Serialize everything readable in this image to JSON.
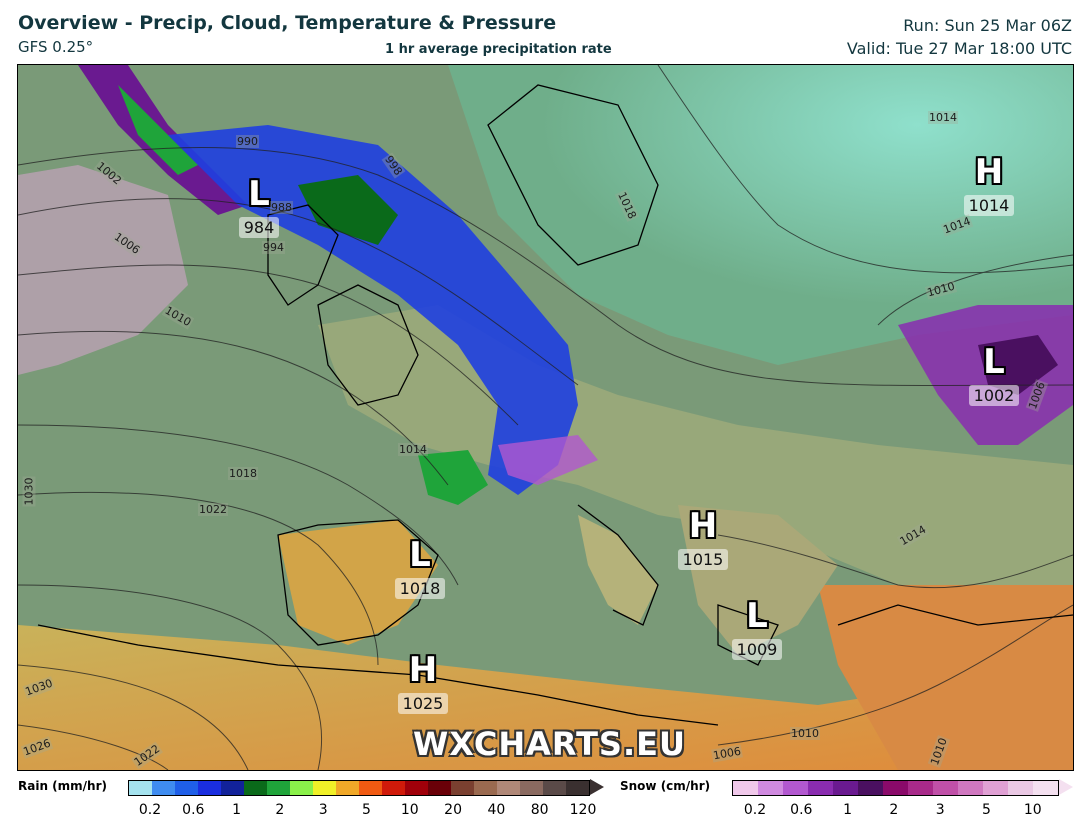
{
  "header": {
    "title": "Overview - Precip, Cloud, Temperature & Pressure",
    "model": "GFS 0.25°",
    "subtitle": "1 hr average precipitation rate",
    "run": "Run: Sun 25 Mar 06Z",
    "valid": "Valid: Tue 27 Mar 18:00 UTC"
  },
  "map": {
    "pressure_centers": [
      {
        "type": "L",
        "value": "984"
      },
      {
        "type": "H",
        "value": "1014"
      },
      {
        "type": "L",
        "value": "1002"
      },
      {
        "type": "H",
        "value": "1015"
      },
      {
        "type": "L",
        "value": "1018"
      },
      {
        "type": "L",
        "value": "1009"
      },
      {
        "type": "H",
        "value": "1025"
      }
    ],
    "isobar_labels": [
      "990",
      "1002",
      "1006",
      "1010",
      "988",
      "994",
      "998",
      "1018",
      "1014",
      "1014",
      "1014",
      "1010",
      "1006",
      "1018",
      "1022",
      "1030",
      "1030",
      "1026",
      "1022",
      "1010",
      "1006",
      "1014",
      "1010"
    ],
    "watermark": "WXCHARTS.EU",
    "colors": {
      "ocean": "#7d9a78",
      "land_warm": "#d9a53c",
      "cloud_teal": "#7fd6c0",
      "precip_blue": "#1f3fe0",
      "snow_purple": "#9a3fb0"
    }
  },
  "legend": {
    "rain": {
      "title": "Rain (mm/hr)",
      "ticks": [
        "0.2",
        "0.6",
        "1",
        "2",
        "3",
        "5",
        "10",
        "20",
        "40",
        "80",
        "120"
      ],
      "colors": [
        "#a5e3ef",
        "#3f8cf0",
        "#1f5fe8",
        "#1a2ee0",
        "#12229a",
        "#0a6a1a",
        "#1fa43a",
        "#8af04a",
        "#f0f028",
        "#f0a828",
        "#f05a12",
        "#d01a0a",
        "#a0000a",
        "#6a0008",
        "#7a4030",
        "#9a6a50",
        "#b08878",
        "#8a6a60",
        "#5a4a48",
        "#3a3030"
      ]
    },
    "snow": {
      "title": "Snow (cm/hr)",
      "ticks": [
        "0.2",
        "0.6",
        "1",
        "2",
        "3",
        "5",
        "10"
      ],
      "colors": [
        "#f0c8ea",
        "#d08ae0",
        "#b258d0",
        "#8a2cb0",
        "#6a1a90",
        "#4a1060",
        "#8a0a6a",
        "#a82a8a",
        "#c050a8",
        "#d078c0",
        "#e0a0d4",
        "#eac8e4",
        "#f4e0f0"
      ]
    }
  }
}
